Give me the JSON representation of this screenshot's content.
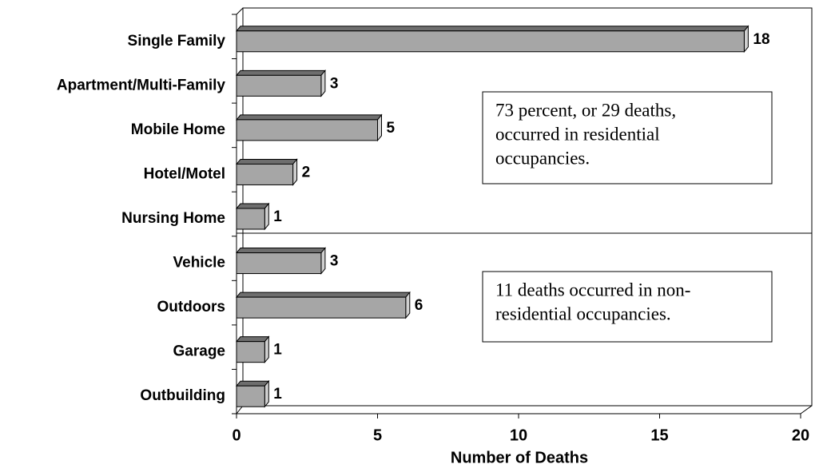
{
  "chart_data": {
    "type": "bar",
    "orientation": "horizontal",
    "categories": [
      "Single Family",
      "Apartment/Multi-Family",
      "Mobile Home",
      "Hotel/Motel",
      "Nursing Home",
      "Vehicle",
      "Outdoors",
      "Garage",
      "Outbuilding"
    ],
    "values": [
      18,
      3,
      5,
      2,
      1,
      3,
      6,
      1,
      1
    ],
    "color": "#a6a6a6",
    "xlim": [
      0,
      20
    ],
    "xticks": [
      0,
      5,
      10,
      15,
      20
    ],
    "xlabel": "Number of Deaths",
    "annotations": [
      [
        "73 percent, or 29 deaths,",
        "occurred in residential",
        "occupancies."
      ],
      [
        "11 deaths occurred in non-",
        "residential occupancies."
      ]
    ]
  }
}
